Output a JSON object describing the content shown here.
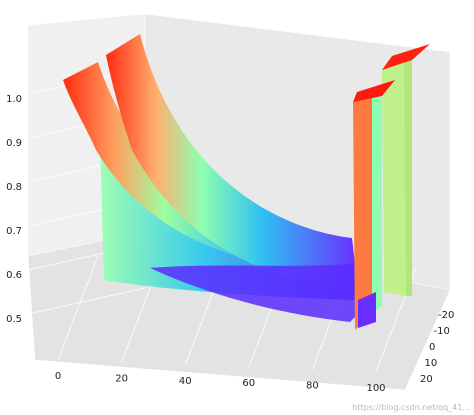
{
  "chart_data": {
    "type": "surface3d",
    "title": "",
    "xlabel": "",
    "ylabel": "",
    "zlabel": "",
    "colormap": "rainbow",
    "x_ticks": [
      "0",
      "20",
      "40",
      "60",
      "80",
      "100"
    ],
    "y_ticks": [
      "-20",
      "-10",
      "0",
      "10",
      "20"
    ],
    "z_ticks": [
      "0.5",
      "0.6",
      "0.7",
      "0.8",
      "0.9",
      "1.0"
    ],
    "xlim": [
      -5,
      105
    ],
    "ylim": [
      -25,
      25
    ],
    "zlim": [
      0.4,
      1.0
    ],
    "grid": true,
    "surfaces": [
      {
        "shape": "curve",
        "y_center": 8,
        "thickness": 6,
        "z_start": 0.98,
        "z_end": 0.52,
        "x_start": 5,
        "x_end": 100
      },
      {
        "shape": "curve",
        "y_center": -2,
        "thickness": 6,
        "z_start": 0.99,
        "z_end": 0.56,
        "x_start": 5,
        "x_end": 100
      },
      {
        "shape": "slab",
        "x": 100,
        "y_center": 8,
        "z_top": 0.93,
        "z_bottom": 0.44
      },
      {
        "shape": "slab",
        "x": 100,
        "y_center": -13,
        "z_top": 0.99,
        "z_bottom": 0.5
      }
    ]
  },
  "watermark": "https://blog.csdn.net/qq_41..."
}
